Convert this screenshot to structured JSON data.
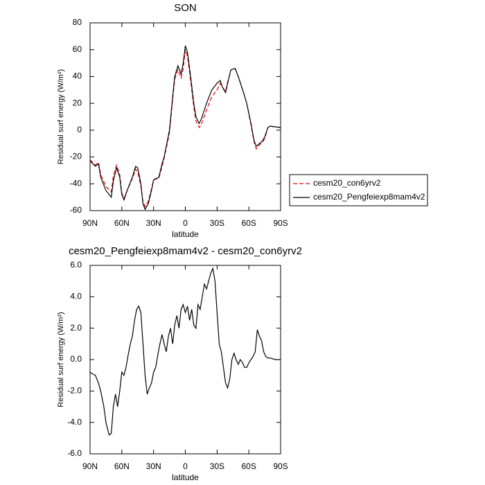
{
  "chart_data": [
    {
      "type": "line",
      "title": "SON",
      "x_label": "latitude",
      "y_label": "Residual surf energy (W/m²)",
      "xlim": [
        90,
        -90
      ],
      "ylim": [
        -60,
        80
      ],
      "xticks": [
        {
          "value": 90,
          "label": "90N"
        },
        {
          "value": 60,
          "label": "60N"
        },
        {
          "value": 30,
          "label": "30N"
        },
        0,
        {
          "value": -30,
          "label": "30S"
        },
        {
          "value": -60,
          "label": "60S"
        },
        {
          "value": -90,
          "label": "90S"
        }
      ],
      "yticks": [
        -60,
        -40,
        -20,
        0,
        20,
        40,
        60,
        80
      ],
      "legend": "right",
      "x": [
        90,
        85,
        82,
        80,
        75,
        70,
        68,
        65,
        62,
        60,
        58,
        55,
        50,
        47,
        45,
        42,
        40,
        38,
        35,
        32,
        30,
        25,
        22,
        20,
        15,
        12,
        10,
        7,
        4,
        2,
        0,
        -2,
        -5,
        -8,
        -10,
        -13,
        -15,
        -20,
        -25,
        -30,
        -33,
        -35,
        -38,
        -40,
        -43,
        -47,
        -50,
        -55,
        -58,
        -62,
        -65,
        -67,
        -70,
        -73,
        -75,
        -78,
        -80,
        -90
      ],
      "series": [
        {
          "name": "cesm20_con6yrv2",
          "color": "#e8000b",
          "dashed": true,
          "values": [
            -22,
            -26,
            -24,
            -33,
            -42,
            -46,
            -34,
            -26,
            -33,
            -47,
            -51,
            -45,
            -36,
            -29,
            -31,
            -42,
            -53,
            -57,
            -53,
            -44,
            -37,
            -36,
            -27,
            -21,
            -2,
            23,
            38,
            45,
            39,
            46,
            60,
            55,
            37,
            17,
            7,
            2,
            4,
            15,
            25,
            30,
            35,
            32,
            29,
            36,
            45,
            46,
            40,
            28,
            20,
            4,
            -9,
            -14,
            -11,
            -9,
            -6,
            2,
            3,
            2
          ]
        },
        {
          "name": "cesm20_Pengfeiexp8mam4v2",
          "color": "#000000",
          "dashed": false,
          "values": [
            -23,
            -27,
            -25,
            -35,
            -45,
            -50,
            -38,
            -28,
            -35,
            -48,
            -52,
            -45,
            -35,
            -27,
            -28,
            -40,
            -55,
            -59,
            -55,
            -45,
            -37,
            -35,
            -25,
            -20,
            0,
            25,
            40,
            48,
            42,
            50,
            63,
            58,
            40,
            20,
            10,
            5,
            8,
            20,
            30,
            35,
            37,
            32,
            28,
            35,
            45,
            46,
            40,
            28,
            20,
            5,
            -8,
            -12,
            -10,
            -8,
            -5,
            2,
            3,
            2
          ]
        }
      ]
    },
    {
      "type": "line",
      "title": "cesm20_Pengfeiexp8mam4v2 - cesm20_con6yrv2",
      "x_label": "latitude",
      "y_label": "Residual surf energy (W/m²)",
      "xlim": [
        90,
        -90
      ],
      "ylim": [
        -6,
        6
      ],
      "xticks": [
        {
          "value": 90,
          "label": "90N"
        },
        {
          "value": 60,
          "label": "60N"
        },
        {
          "value": 30,
          "label": "30N"
        },
        0,
        {
          "value": -30,
          "label": "30S"
        },
        {
          "value": -60,
          "label": "60S"
        },
        {
          "value": -90,
          "label": "90S"
        }
      ],
      "yticks": [
        {
          "value": -6,
          "label": "-6.0"
        },
        {
          "value": -4,
          "label": "-4.0"
        },
        {
          "value": -2,
          "label": "-2.0"
        },
        {
          "value": 0,
          "label": "0.0"
        },
        {
          "value": 2,
          "label": "2.0"
        },
        {
          "value": 4,
          "label": "4.0"
        },
        {
          "value": 6,
          "label": "6.0"
        }
      ],
      "color": "#000000",
      "x": [
        90,
        88,
        85,
        82,
        80,
        77,
        75,
        72,
        70,
        68,
        66,
        64,
        62,
        60,
        58,
        56,
        54,
        52,
        50,
        48,
        46,
        44,
        42,
        40,
        38,
        36,
        34,
        32,
        30,
        28,
        26,
        24,
        22,
        20,
        18,
        16,
        14,
        12,
        10,
        8,
        6,
        4,
        2,
        0,
        -2,
        -4,
        -6,
        -8,
        -10,
        -12,
        -14,
        -16,
        -18,
        -20,
        -22,
        -24,
        -26,
        -28,
        -30,
        -32,
        -34,
        -36,
        -38,
        -40,
        -42,
        -44,
        -46,
        -48,
        -50,
        -52,
        -54,
        -56,
        -58,
        -60,
        -62,
        -64,
        -66,
        -68,
        -70,
        -72,
        -74,
        -76,
        -78,
        -80,
        -85,
        -90
      ],
      "values": [
        -0.8,
        -0.9,
        -1.0,
        -1.5,
        -2.0,
        -3.0,
        -4.0,
        -4.8,
        -4.7,
        -3.0,
        -2.2,
        -3.0,
        -2.0,
        -0.8,
        -1.0,
        -0.5,
        0.3,
        1.0,
        1.5,
        2.5,
        3.2,
        3.4,
        3.0,
        1.0,
        -1.0,
        -2.2,
        -1.8,
        -1.5,
        -0.8,
        -0.5,
        0.3,
        1.0,
        1.6,
        1.0,
        0.5,
        1.5,
        2.0,
        1.0,
        2.2,
        2.8,
        2.0,
        3.2,
        3.5,
        3.0,
        3.4,
        2.5,
        3.2,
        2.2,
        2.0,
        3.5,
        3.2,
        4.0,
        4.8,
        4.5,
        5.0,
        5.5,
        5.8,
        5.0,
        3.0,
        1.0,
        0.5,
        -0.5,
        -1.5,
        -1.8,
        -1.2,
        0.0,
        0.4,
        0.0,
        -0.3,
        0.0,
        -0.2,
        -0.5,
        -0.5,
        -0.2,
        0.0,
        0.2,
        0.5,
        1.9,
        1.5,
        1.2,
        0.5,
        0.2,
        0.1,
        0.1,
        0.0,
        0.0
      ]
    }
  ]
}
